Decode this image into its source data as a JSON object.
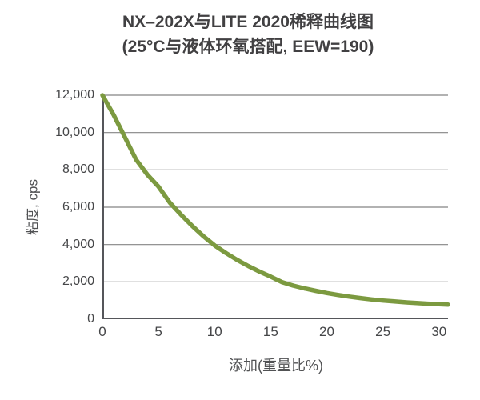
{
  "colors": {
    "background": "#ffffff",
    "text": "#414042",
    "tick_text": "#454648",
    "axis_title_text": "#515254",
    "grid": "#848484",
    "axis": "#55565a",
    "curve": "#7c9a40"
  },
  "chart_data": {
    "type": "line",
    "title": "NX–202X与LITE 2020稀释曲线图",
    "subtitle": "(25°C与液体环氧搭配, EEW=190)",
    "xlabel": "添加(重量比%)",
    "ylabel": "粘度, cps",
    "xlim": [
      0,
      30.8
    ],
    "ylim": [
      0,
      12000
    ],
    "x_ticks": [
      0,
      5,
      10,
      15,
      20,
      25,
      30
    ],
    "y_ticks": [
      0,
      2000,
      4000,
      6000,
      8000,
      10000,
      12000
    ],
    "y_tick_labels": [
      "0",
      "2,000",
      "4,000",
      "6,000",
      "8,000",
      "10,000",
      "12,000"
    ],
    "grid": "horizontal-only",
    "legend_position": "none",
    "series": [
      {
        "color": "#7c9a40",
        "points": [
          [
            0,
            12000
          ],
          [
            1,
            10950
          ],
          [
            2,
            9750
          ],
          [
            3,
            8550
          ],
          [
            4,
            7750
          ],
          [
            5,
            7100
          ],
          [
            6,
            6250
          ],
          [
            7,
            5600
          ],
          [
            8,
            5000
          ],
          [
            9,
            4450
          ],
          [
            10,
            3950
          ],
          [
            11,
            3550
          ],
          [
            12,
            3180
          ],
          [
            13,
            2850
          ],
          [
            14,
            2550
          ],
          [
            15,
            2280
          ],
          [
            16,
            1990
          ],
          [
            17,
            1800
          ],
          [
            18,
            1650
          ],
          [
            19,
            1520
          ],
          [
            20,
            1400
          ],
          [
            21,
            1300
          ],
          [
            22,
            1210
          ],
          [
            23,
            1130
          ],
          [
            24,
            1060
          ],
          [
            25,
            1000
          ],
          [
            26,
            950
          ],
          [
            27,
            905
          ],
          [
            28,
            865
          ],
          [
            29,
            830
          ],
          [
            30,
            800
          ],
          [
            30.8,
            780
          ]
        ]
      }
    ]
  }
}
